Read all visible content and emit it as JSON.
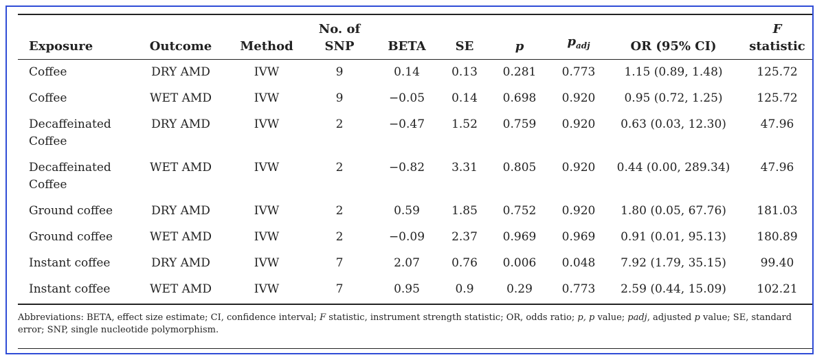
{
  "table": {
    "headers": {
      "exposure": "Exposure",
      "outcome": "Outcome",
      "method": "Method",
      "nsnp_line1": "No. of",
      "nsnp_line2": "SNP",
      "beta": "BETA",
      "se": "SE",
      "p": "p",
      "padj_main": "p",
      "padj_sub": "adj",
      "or": "OR (95% CI)",
      "f_line1": "F",
      "f_line2": "statistic"
    },
    "rows": [
      {
        "exposure": "Coffee",
        "outcome": "DRY AMD",
        "method": "IVW",
        "nsnp": "9",
        "beta": "0.14",
        "se": "0.13",
        "p": "0.281",
        "padj": "0.773",
        "or": "1.15 (0.89, 1.48)",
        "f": "125.72"
      },
      {
        "exposure": "Coffee",
        "outcome": "WET AMD",
        "method": "IVW",
        "nsnp": "9",
        "beta": "−0.05",
        "se": "0.14",
        "p": "0.698",
        "padj": "0.920",
        "or": "0.95 (0.72, 1.25)",
        "f": "125.72"
      },
      {
        "exposure": "Decaffeinated Coffee",
        "outcome": "DRY AMD",
        "method": "IVW",
        "nsnp": "2",
        "beta": "−0.47",
        "se": "1.52",
        "p": "0.759",
        "padj": "0.920",
        "or": "0.63 (0.03, 12.30)",
        "f": "47.96"
      },
      {
        "exposure": "Decaffeinated Coffee",
        "outcome": "WET AMD",
        "method": "IVW",
        "nsnp": "2",
        "beta": "−0.82",
        "se": "3.31",
        "p": "0.805",
        "padj": "0.920",
        "or": "0.44 (0.00, 289.34)",
        "f": "47.96"
      },
      {
        "exposure": "Ground coffee",
        "outcome": "DRY AMD",
        "method": "IVW",
        "nsnp": "2",
        "beta": "0.59",
        "se": "1.85",
        "p": "0.752",
        "padj": "0.920",
        "or": "1.80 (0.05, 67.76)",
        "f": "181.03"
      },
      {
        "exposure": "Ground coffee",
        "outcome": "WET AMD",
        "method": "IVW",
        "nsnp": "2",
        "beta": "−0.09",
        "se": "2.37",
        "p": "0.969",
        "padj": "0.969",
        "or": "0.91 (0.01, 95.13)",
        "f": "180.89"
      },
      {
        "exposure": "Instant coffee",
        "outcome": "DRY AMD",
        "method": "IVW",
        "nsnp": "7",
        "beta": "2.07",
        "se": "0.76",
        "p": "0.006",
        "padj": "0.048",
        "or": "7.92 (1.79, 35.15)",
        "f": "99.40"
      },
      {
        "exposure": "Instant coffee",
        "outcome": "WET AMD",
        "method": "IVW",
        "nsnp": "7",
        "beta": "0.95",
        "se": "0.9",
        "p": "0.29",
        "padj": "0.773",
        "or": "2.59 (0.44, 15.09)",
        "f": "102.21"
      }
    ]
  },
  "footnote": {
    "part1": "Abbreviations: BETA, effect size estimate; CI, confidence interval; ",
    "f_italic": "F",
    "part2": " statistic, instrument strength statistic; OR, odds ratio; ",
    "p_italic": "p, p",
    "part3": " value; ",
    "padj_italic": "padj",
    "part4": ", adjusted ",
    "p_italic2": "p",
    "part5": " value; SE, standard error; SNP, single nucleotide polymorphism."
  }
}
